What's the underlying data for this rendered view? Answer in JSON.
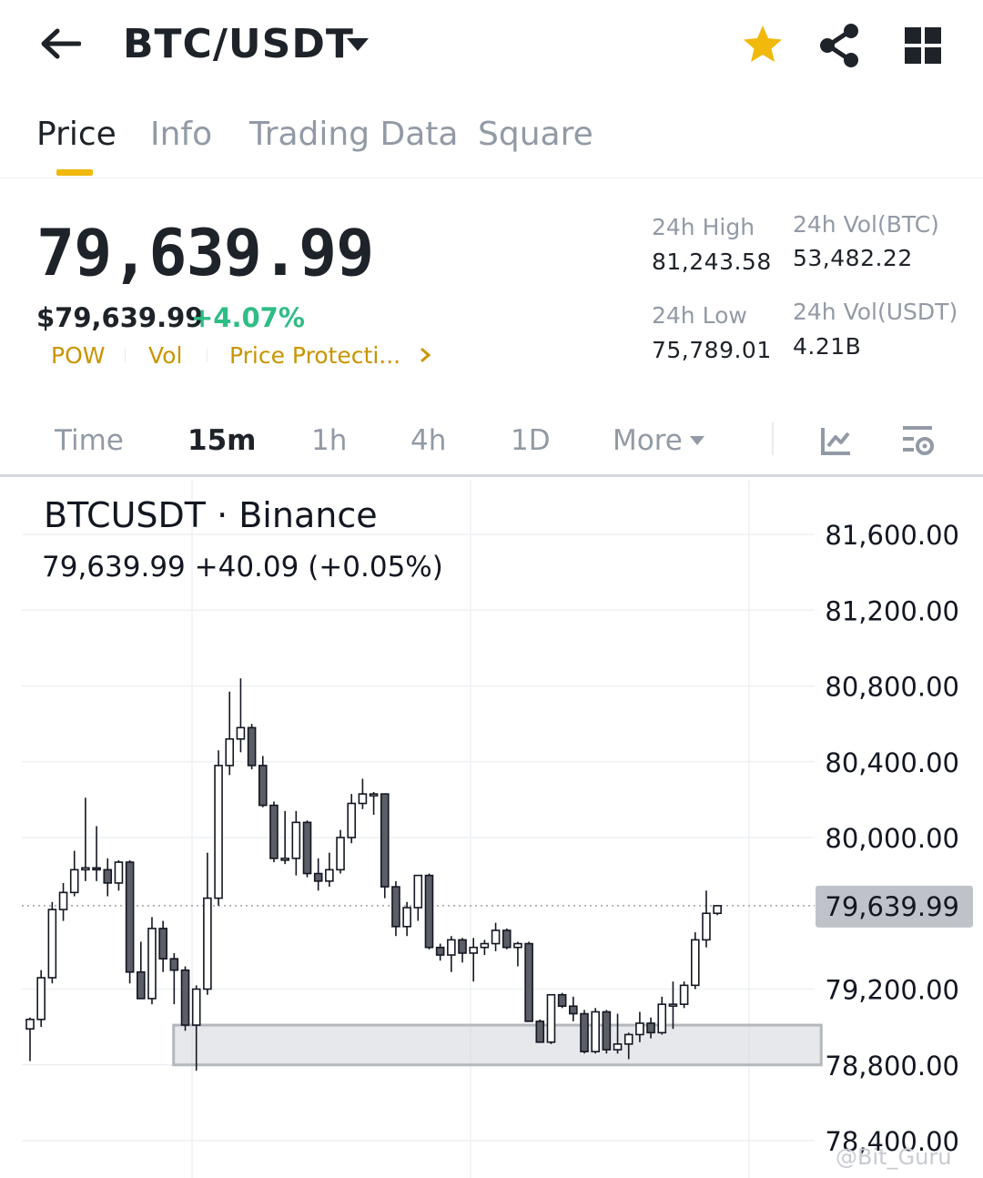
{
  "header": {
    "pair": "BTC/USDT",
    "icons": {
      "back": "back-arrow-icon",
      "caret": "caret-down-icon",
      "favorite": "star-icon",
      "share": "share-icon",
      "more": "grid-icon"
    },
    "favorite_color": "#f0b90b"
  },
  "tabs": [
    {
      "label": "Price",
      "active": true
    },
    {
      "label": "Info",
      "active": false
    },
    {
      "label": "Trading Data",
      "active": false
    },
    {
      "label": "Square",
      "active": false
    }
  ],
  "ticker": {
    "last_price": "79,639.99",
    "usd_price": "$79,639.99",
    "change_pct": "+4.07%",
    "tags": [
      "POW",
      "Vol",
      "Price Protecti..."
    ],
    "stats": {
      "high_label": "24h High",
      "high_value": "81,243.58",
      "low_label": "24h Low",
      "low_value": "75,789.01",
      "vol_btc_label": "24h Vol(BTC)",
      "vol_btc_value": "53,482.22",
      "vol_usdt_label": "24h Vol(USDT)",
      "vol_usdt_value": "4.21B"
    },
    "up_color": "#2ebd85",
    "tag_color": "#c99400"
  },
  "timeframes": {
    "items": [
      "Time",
      "15m",
      "1h",
      "4h",
      "1D",
      "More"
    ],
    "active": "15m",
    "icons": [
      "indicator-icon",
      "chart-settings-icon"
    ]
  },
  "chart": {
    "title": "BTCUSDT · Binance",
    "quote": "79,639.99  +40.09 (+0.05%)",
    "watermark": "@Bit_Guru"
  },
  "chart_data": {
    "type": "candlestick",
    "title": "BTCUSDT · Binance",
    "interval": "15m",
    "y_ticks": [
      "81,600.00",
      "81,200.00",
      "80,800.00",
      "80,400.00",
      "80,000.00",
      "79,200.00",
      "78,800.00",
      "78,400.00"
    ],
    "y_tick_values": [
      81600,
      81200,
      80800,
      80400,
      80000,
      79200,
      78800,
      78400
    ],
    "current_price": 79639.99,
    "current_price_label": "79,639.99",
    "ylim": [
      78400,
      81760
    ],
    "grid": true,
    "support_zone": {
      "from_index": 15,
      "to_index": 68,
      "low": 78800,
      "high": 79010
    },
    "candles": [
      {
        "o": 78990,
        "h": 79050,
        "l": 78820,
        "c": 79040
      },
      {
        "o": 79040,
        "h": 79300,
        "l": 79000,
        "c": 79260
      },
      {
        "o": 79260,
        "h": 79660,
        "l": 79230,
        "c": 79620
      },
      {
        "o": 79620,
        "h": 79760,
        "l": 79560,
        "c": 79710
      },
      {
        "o": 79710,
        "h": 79930,
        "l": 79690,
        "c": 79830
      },
      {
        "o": 79830,
        "h": 80210,
        "l": 79770,
        "c": 79840
      },
      {
        "o": 79840,
        "h": 80060,
        "l": 79770,
        "c": 79830
      },
      {
        "o": 79830,
        "h": 79890,
        "l": 79690,
        "c": 79760
      },
      {
        "o": 79760,
        "h": 79880,
        "l": 79720,
        "c": 79870
      },
      {
        "o": 79870,
        "h": 79880,
        "l": 79230,
        "c": 79290
      },
      {
        "o": 79290,
        "h": 79450,
        "l": 79150,
        "c": 79150
      },
      {
        "o": 79150,
        "h": 79580,
        "l": 79120,
        "c": 79520
      },
      {
        "o": 79520,
        "h": 79560,
        "l": 79290,
        "c": 79360
      },
      {
        "o": 79360,
        "h": 79390,
        "l": 79120,
        "c": 79300
      },
      {
        "o": 79300,
        "h": 79320,
        "l": 78980,
        "c": 79010
      },
      {
        "o": 79010,
        "h": 79220,
        "l": 78770,
        "c": 79200
      },
      {
        "o": 79200,
        "h": 79920,
        "l": 79170,
        "c": 79680
      },
      {
        "o": 79680,
        "h": 80460,
        "l": 79640,
        "c": 80380
      },
      {
        "o": 80380,
        "h": 80770,
        "l": 80330,
        "c": 80520
      },
      {
        "o": 80520,
        "h": 80840,
        "l": 80450,
        "c": 80580
      },
      {
        "o": 80580,
        "h": 80600,
        "l": 80360,
        "c": 80380
      },
      {
        "o": 80380,
        "h": 80430,
        "l": 80160,
        "c": 80170
      },
      {
        "o": 80170,
        "h": 80190,
        "l": 79870,
        "c": 79890
      },
      {
        "o": 79890,
        "h": 80140,
        "l": 79860,
        "c": 79890
      },
      {
        "o": 79890,
        "h": 80140,
        "l": 79800,
        "c": 80080
      },
      {
        "o": 80080,
        "h": 80090,
        "l": 79790,
        "c": 79810
      },
      {
        "o": 79810,
        "h": 79890,
        "l": 79720,
        "c": 79770
      },
      {
        "o": 79770,
        "h": 79920,
        "l": 79740,
        "c": 79830
      },
      {
        "o": 79830,
        "h": 80040,
        "l": 79810,
        "c": 80000
      },
      {
        "o": 80000,
        "h": 80230,
        "l": 79970,
        "c": 80180
      },
      {
        "o": 80180,
        "h": 80310,
        "l": 80150,
        "c": 80230
      },
      {
        "o": 80230,
        "h": 80240,
        "l": 80120,
        "c": 80230
      },
      {
        "o": 80230,
        "h": 80230,
        "l": 79680,
        "c": 79740
      },
      {
        "o": 79740,
        "h": 79770,
        "l": 79480,
        "c": 79530
      },
      {
        "o": 79530,
        "h": 79660,
        "l": 79480,
        "c": 79630
      },
      {
        "o": 79630,
        "h": 79770,
        "l": 79560,
        "c": 79800
      },
      {
        "o": 79800,
        "h": 79810,
        "l": 79410,
        "c": 79420
      },
      {
        "o": 79420,
        "h": 79440,
        "l": 79350,
        "c": 79380
      },
      {
        "o": 79380,
        "h": 79480,
        "l": 79290,
        "c": 79460
      },
      {
        "o": 79460,
        "h": 79470,
        "l": 79340,
        "c": 79390
      },
      {
        "o": 79390,
        "h": 79470,
        "l": 79240,
        "c": 79420
      },
      {
        "o": 79420,
        "h": 79460,
        "l": 79380,
        "c": 79440
      },
      {
        "o": 79440,
        "h": 79550,
        "l": 79400,
        "c": 79510
      },
      {
        "o": 79510,
        "h": 79520,
        "l": 79410,
        "c": 79420
      },
      {
        "o": 79420,
        "h": 79450,
        "l": 79320,
        "c": 79440
      },
      {
        "o": 79440,
        "h": 79450,
        "l": 79030,
        "c": 79030
      },
      {
        "o": 79030,
        "h": 79040,
        "l": 78920,
        "c": 78920
      },
      {
        "o": 78920,
        "h": 79170,
        "l": 78910,
        "c": 79170
      },
      {
        "o": 79170,
        "h": 79180,
        "l": 79100,
        "c": 79110
      },
      {
        "o": 79110,
        "h": 79160,
        "l": 79030,
        "c": 79070
      },
      {
        "o": 79070,
        "h": 79090,
        "l": 78860,
        "c": 78870
      },
      {
        "o": 78870,
        "h": 79100,
        "l": 78860,
        "c": 79080
      },
      {
        "o": 79080,
        "h": 79090,
        "l": 78860,
        "c": 78880
      },
      {
        "o": 78880,
        "h": 79070,
        "l": 78860,
        "c": 78910
      },
      {
        "o": 78910,
        "h": 78970,
        "l": 78830,
        "c": 78960
      },
      {
        "o": 78960,
        "h": 79080,
        "l": 78920,
        "c": 79020
      },
      {
        "o": 79020,
        "h": 79050,
        "l": 78940,
        "c": 78970
      },
      {
        "o": 78970,
        "h": 79160,
        "l": 78960,
        "c": 79120
      },
      {
        "o": 79120,
        "h": 79240,
        "l": 78990,
        "c": 79120
      },
      {
        "o": 79120,
        "h": 79240,
        "l": 79100,
        "c": 79220
      },
      {
        "o": 79220,
        "h": 79500,
        "l": 79200,
        "c": 79460
      },
      {
        "o": 79460,
        "h": 79720,
        "l": 79420,
        "c": 79600
      },
      {
        "o": 79600,
        "h": 79640,
        "l": 79590,
        "c": 79640
      }
    ]
  }
}
